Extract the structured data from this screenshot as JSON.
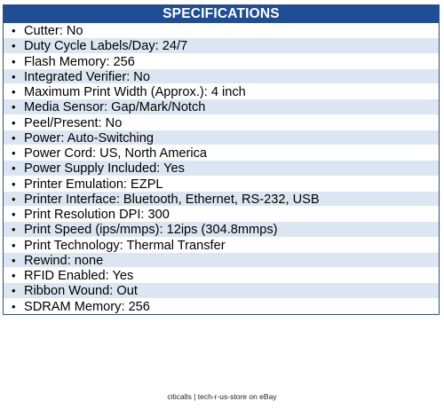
{
  "header": {
    "title": "SPECIFICATIONS"
  },
  "bullet_glyph": "•",
  "specs": [
    "Cutter: No",
    "Duty Cycle Labels/Day: 24/7",
    "Flash Memory: 256",
    "Integrated Verifier: No",
    "Maximum Print Width (Approx.): 4 inch",
    "Media Sensor: Gap/Mark/Notch",
    "Peel/Present: No",
    "Power: Auto-Switching",
    "Power Cord: US, North America",
    "Power Supply Included: Yes",
    "Printer Emulation: EZPL",
    "Printer Interface: Bluetooth, Ethernet, RS-232, USB",
    "Print Resolution DPI: 300",
    "Print Speed (ips/mmps): 12ips (304.8mmps)",
    "Print Technology: Thermal Transfer",
    "Rewind: none",
    "RFID Enabled: Yes",
    "Ribbon Wound: Out",
    "SDRAM Memory: 256"
  ],
  "footer": {
    "text": "citicalls | tech-r-us-store on eBay"
  },
  "colors": {
    "header_bg": "#1f4e96",
    "shaded_row": "#dce6f2",
    "plain_row": "#ffffff"
  }
}
